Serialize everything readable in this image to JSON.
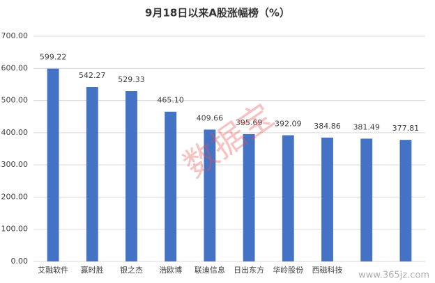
{
  "chart_data": {
    "type": "bar",
    "title": "9月18日以来A股涨幅榜（%）",
    "categories": [
      "艾融软件",
      "赢时胜",
      "银之杰",
      "浩欧博",
      "联迪信息",
      "日出东方",
      "华岭股份",
      "西磁科技",
      null,
      null
    ],
    "values": [
      599.22,
      542.27,
      529.33,
      465.1,
      409.66,
      395.69,
      392.09,
      384.86,
      381.49,
      377.81
    ],
    "value_labels": [
      "599.22",
      "542.27",
      "529.33",
      "465.10",
      "409.66",
      "395.69",
      "392.09",
      "384.86",
      "381.49",
      "377.81"
    ],
    "color": "#4472c4",
    "ylim": [
      0,
      700
    ],
    "yticks": [
      {
        "value": 0,
        "label": "0.00"
      },
      {
        "value": 100,
        "label": "100.00"
      },
      {
        "value": 200,
        "label": "200.00"
      },
      {
        "value": 300,
        "label": "300.00"
      },
      {
        "value": 400,
        "label": "400.00"
      },
      {
        "value": 500,
        "label": "500.00"
      },
      {
        "value": 600,
        "label": "600.00"
      },
      {
        "value": 700,
        "label": "700.00"
      }
    ],
    "grid": true,
    "watermarks": [
      "数据宝",
      "www.365jz.com"
    ]
  }
}
